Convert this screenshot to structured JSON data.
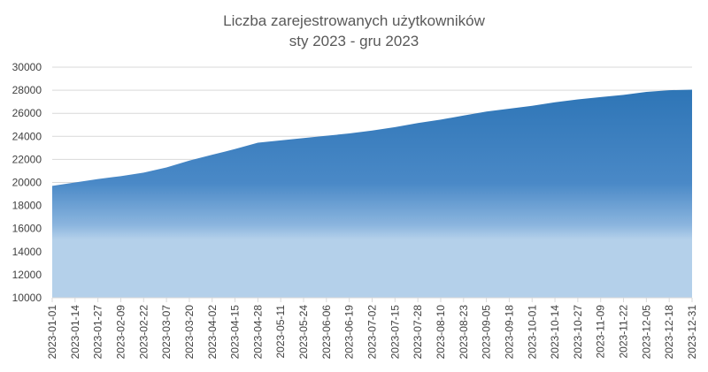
{
  "chart_data": {
    "type": "area",
    "title": "Liczba zarejestrowanych użytkowników",
    "subtitle": "sty 2023 - gru 2023",
    "xlabel": "",
    "ylabel": "",
    "ylim": [
      10000,
      30000
    ],
    "y_ticks": [
      "10000",
      "12000",
      "14000",
      "16000",
      "18000",
      "20000",
      "22000",
      "24000",
      "26000",
      "28000",
      "30000"
    ],
    "x_ticks": [
      "2023-01-01",
      "2023-01-14",
      "2023-01-27",
      "2023-02-09",
      "2023-02-22",
      "2023-03-07",
      "2023-03-20",
      "2023-04-02",
      "2023-04-15",
      "2023-04-28",
      "2023-05-11",
      "2023-05-24",
      "2023-06-06",
      "2023-06-19",
      "2023-07-02",
      "2023-07-15",
      "2023-07-28",
      "2023-08-10",
      "2023-08-23",
      "2023-09-05",
      "2023-09-18",
      "2023-10-01",
      "2023-10-14",
      "2023-10-27",
      "2023-11-09",
      "2023-11-22",
      "2023-12-05",
      "2023-12-18",
      "2023-12-31"
    ],
    "grid": true,
    "legend": "none",
    "colors": {
      "top": "#2e75b6",
      "bottom": "#b4d0ea"
    },
    "series": [
      {
        "x": [
          "2023-01-01",
          "2023-01-14",
          "2023-01-27",
          "2023-02-09",
          "2023-02-22",
          "2023-03-07",
          "2023-03-20",
          "2023-04-02",
          "2023-04-15",
          "2023-04-28",
          "2023-05-11",
          "2023-05-24",
          "2023-06-06",
          "2023-06-19",
          "2023-07-02",
          "2023-07-15",
          "2023-07-28",
          "2023-08-10",
          "2023-08-23",
          "2023-09-05",
          "2023-09-18",
          "2023-10-01",
          "2023-10-14",
          "2023-10-27",
          "2023-11-09",
          "2023-11-22",
          "2023-12-05",
          "2023-12-18",
          "2023-12-31"
        ],
        "values": [
          19700,
          20000,
          20300,
          20550,
          20850,
          21300,
          21900,
          22400,
          22900,
          23450,
          23650,
          23850,
          24050,
          24250,
          24500,
          24800,
          25150,
          25450,
          25800,
          26150,
          26400,
          26650,
          26950,
          27200,
          27400,
          27600,
          27850,
          28000,
          28050
        ]
      }
    ]
  }
}
